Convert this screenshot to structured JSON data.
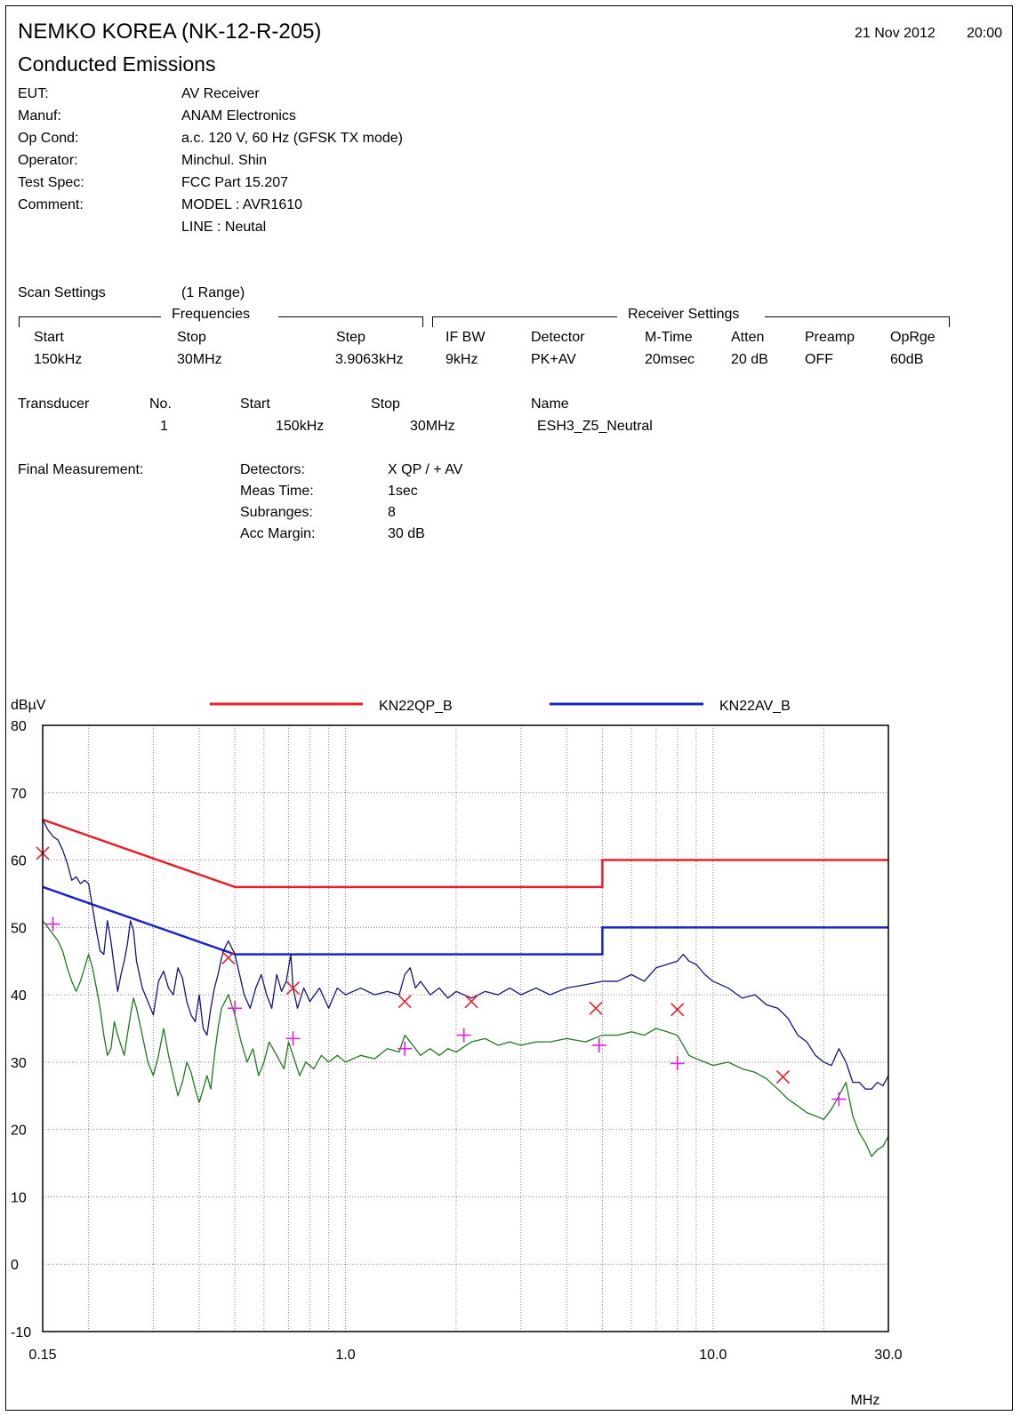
{
  "header": {
    "lab_title": "NEMKO KOREA (NK-12-R-205)",
    "test_title": "Conducted Emissions",
    "date": "21 Nov 2012",
    "time": "20:00"
  },
  "info": [
    {
      "label": "EUT:",
      "value": "AV Receiver"
    },
    {
      "label": "Manuf:",
      "value": "ANAM Electronics"
    },
    {
      "label": "Op Cond:",
      "value": "a.c. 120 V, 60 Hz (GFSK TX mode)"
    },
    {
      "label": "Operator:",
      "value": "Minchul. Shin"
    },
    {
      "label": "Test Spec:",
      "value": "FCC Part 15.207"
    },
    {
      "label": "Comment:",
      "value": "MODEL : AVR1610"
    },
    {
      "label": "",
      "value": "LINE : Neutal"
    }
  ],
  "scan": {
    "label": "Scan Settings",
    "range": "(1  Range)",
    "frequencies_title": "Frequencies",
    "receiver_title": "Receiver Settings",
    "headers": {
      "start": "Start",
      "stop": "Stop",
      "step": "Step",
      "ifbw": "IF BW",
      "detector": "Detector",
      "mtime": "M-Time",
      "atten": "Atten",
      "preamp": "Preamp",
      "oprge": "OpRge"
    },
    "values": {
      "start": "150kHz",
      "stop": "30MHz",
      "step": "3.9063kHz",
      "ifbw": "9kHz",
      "detector": "PK+AV",
      "mtime": "20msec",
      "atten": "20 dB",
      "preamp": "OFF",
      "oprge": "60dB"
    }
  },
  "transducer": {
    "label": "Transducer",
    "headers": {
      "no": "No.",
      "start": "Start",
      "stop": "Stop",
      "name": "Name"
    },
    "values": {
      "no": "1",
      "start": "150kHz",
      "stop": "30MHz",
      "name": "ESH3_Z5_Neutral"
    }
  },
  "final": {
    "label": "Final Measurement:",
    "rows": [
      {
        "label": "Detectors:",
        "value": "X QP / + AV"
      },
      {
        "label": "Meas Time:",
        "value": "1sec"
      },
      {
        "label": "Subranges:",
        "value": "8"
      },
      {
        "label": "Acc Margin:",
        "value": "30 dB"
      }
    ]
  },
  "chart_data": {
    "type": "line",
    "ylabel": "dBµV",
    "xlabel": "MHz",
    "x_scale": "log",
    "xlim": [
      0.15,
      30.0
    ],
    "ylim": [
      -10,
      80
    ],
    "y_ticks": [
      80,
      70,
      60,
      50,
      40,
      30,
      20,
      10,
      0,
      -10
    ],
    "x_tick_labels": [
      {
        "x": 0.15,
        "label": "0.15"
      },
      {
        "x": 1.0,
        "label": "1.0"
      },
      {
        "x": 10.0,
        "label": "10.0"
      },
      {
        "x": 30.0,
        "label": "30.0"
      }
    ],
    "grid": true,
    "legend_position": "top",
    "colors": {
      "qp_limit": "#e8202a",
      "av_limit": "#1a24c8",
      "peak_trace": "#15157a",
      "avg_trace": "#1e7a1e",
      "qp_marker": "#e8202a",
      "av_marker": "#e020e0"
    },
    "limit_lines": [
      {
        "name": "KN22QP_B",
        "color": "#e8202a",
        "points": [
          [
            0.15,
            66
          ],
          [
            0.5,
            56
          ],
          [
            5.0,
            56
          ],
          [
            5.0,
            60
          ],
          [
            30.0,
            60
          ]
        ]
      },
      {
        "name": "KN22AV_B",
        "color": "#1a24c8",
        "points": [
          [
            0.15,
            56
          ],
          [
            0.5,
            46
          ],
          [
            5.0,
            46
          ],
          [
            5.0,
            50
          ],
          [
            30.0,
            50
          ]
        ]
      }
    ],
    "traces": [
      {
        "color": "#15157a",
        "points": [
          [
            0.15,
            66
          ],
          [
            0.155,
            64.5
          ],
          [
            0.16,
            63.5
          ],
          [
            0.165,
            63
          ],
          [
            0.17,
            61.5
          ],
          [
            0.175,
            59.5
          ],
          [
            0.18,
            57
          ],
          [
            0.185,
            57.5
          ],
          [
            0.19,
            56.5
          ],
          [
            0.195,
            57
          ],
          [
            0.2,
            56.5
          ],
          [
            0.205,
            53
          ],
          [
            0.21,
            49.5
          ],
          [
            0.215,
            46.5
          ],
          [
            0.22,
            46
          ],
          [
            0.225,
            51
          ],
          [
            0.23,
            48
          ],
          [
            0.235,
            44
          ],
          [
            0.24,
            40.5
          ],
          [
            0.245,
            43
          ],
          [
            0.25,
            45
          ],
          [
            0.255,
            47.5
          ],
          [
            0.26,
            51
          ],
          [
            0.265,
            49.5
          ],
          [
            0.27,
            45
          ],
          [
            0.28,
            41
          ],
          [
            0.29,
            39
          ],
          [
            0.3,
            37
          ],
          [
            0.31,
            42
          ],
          [
            0.32,
            43.5
          ],
          [
            0.33,
            41
          ],
          [
            0.34,
            40
          ],
          [
            0.35,
            44
          ],
          [
            0.36,
            42.5
          ],
          [
            0.37,
            39
          ],
          [
            0.38,
            37
          ],
          [
            0.39,
            36
          ],
          [
            0.4,
            40
          ],
          [
            0.41,
            35
          ],
          [
            0.42,
            34
          ],
          [
            0.43,
            38
          ],
          [
            0.44,
            41
          ],
          [
            0.45,
            43
          ],
          [
            0.46,
            45.5
          ],
          [
            0.47,
            47
          ],
          [
            0.48,
            48
          ],
          [
            0.49,
            47
          ],
          [
            0.5,
            46
          ],
          [
            0.51,
            44
          ],
          [
            0.52,
            42
          ],
          [
            0.53,
            40
          ],
          [
            0.55,
            38
          ],
          [
            0.57,
            41
          ],
          [
            0.59,
            43
          ],
          [
            0.61,
            40
          ],
          [
            0.63,
            38
          ],
          [
            0.65,
            43
          ],
          [
            0.67,
            40.5
          ],
          [
            0.69,
            42
          ],
          [
            0.7,
            44
          ],
          [
            0.71,
            46
          ],
          [
            0.72,
            41
          ],
          [
            0.74,
            38
          ],
          [
            0.77,
            41
          ],
          [
            0.8,
            39
          ],
          [
            0.85,
            41
          ],
          [
            0.9,
            38
          ],
          [
            0.95,
            41
          ],
          [
            1.0,
            40
          ],
          [
            1.1,
            41
          ],
          [
            1.2,
            40
          ],
          [
            1.3,
            40.5
          ],
          [
            1.4,
            40
          ],
          [
            1.45,
            43
          ],
          [
            1.5,
            44
          ],
          [
            1.55,
            41
          ],
          [
            1.6,
            42
          ],
          [
            1.7,
            40
          ],
          [
            1.8,
            41
          ],
          [
            1.9,
            39.5
          ],
          [
            2.0,
            40.5
          ],
          [
            2.2,
            39.5
          ],
          [
            2.4,
            40.5
          ],
          [
            2.6,
            40
          ],
          [
            2.8,
            41
          ],
          [
            3.0,
            40
          ],
          [
            3.3,
            41
          ],
          [
            3.6,
            40
          ],
          [
            4.0,
            41
          ],
          [
            4.5,
            41.5
          ],
          [
            5.0,
            42
          ],
          [
            5.5,
            42
          ],
          [
            6.0,
            43
          ],
          [
            6.5,
            42
          ],
          [
            7.0,
            44
          ],
          [
            7.5,
            44.5
          ],
          [
            8.0,
            45
          ],
          [
            8.3,
            46
          ],
          [
            8.6,
            45
          ],
          [
            9.0,
            44.5
          ],
          [
            9.5,
            43
          ],
          [
            10.0,
            42
          ],
          [
            11.0,
            41
          ],
          [
            12.0,
            39.5
          ],
          [
            13.0,
            40
          ],
          [
            14.0,
            38.5
          ],
          [
            15.0,
            38
          ],
          [
            16.0,
            36.5
          ],
          [
            17.0,
            34
          ],
          [
            18.0,
            33
          ],
          [
            19.0,
            31
          ],
          [
            20.0,
            30
          ],
          [
            21.0,
            29.5
          ],
          [
            22.0,
            32
          ],
          [
            23.0,
            30
          ],
          [
            24.0,
            27
          ],
          [
            25.0,
            27
          ],
          [
            26.0,
            26
          ],
          [
            27.0,
            26
          ],
          [
            28.0,
            27
          ],
          [
            29.0,
            26.5
          ],
          [
            30.0,
            28
          ]
        ]
      },
      {
        "color": "#1e7a1e",
        "points": [
          [
            0.15,
            51
          ],
          [
            0.155,
            50
          ],
          [
            0.16,
            49
          ],
          [
            0.165,
            48
          ],
          [
            0.17,
            46.5
          ],
          [
            0.175,
            44
          ],
          [
            0.18,
            42
          ],
          [
            0.185,
            40.5
          ],
          [
            0.19,
            42
          ],
          [
            0.195,
            44
          ],
          [
            0.2,
            46
          ],
          [
            0.205,
            44
          ],
          [
            0.21,
            41
          ],
          [
            0.215,
            38
          ],
          [
            0.22,
            34
          ],
          [
            0.225,
            31
          ],
          [
            0.23,
            32
          ],
          [
            0.235,
            36
          ],
          [
            0.24,
            34
          ],
          [
            0.25,
            31
          ],
          [
            0.26,
            37
          ],
          [
            0.265,
            39.5
          ],
          [
            0.27,
            38
          ],
          [
            0.28,
            34
          ],
          [
            0.29,
            30
          ],
          [
            0.3,
            28
          ],
          [
            0.31,
            31
          ],
          [
            0.32,
            35
          ],
          [
            0.33,
            31
          ],
          [
            0.34,
            28
          ],
          [
            0.35,
            25
          ],
          [
            0.36,
            27
          ],
          [
            0.37,
            30
          ],
          [
            0.38,
            28.5
          ],
          [
            0.39,
            26
          ],
          [
            0.4,
            24
          ],
          [
            0.41,
            26
          ],
          [
            0.42,
            28
          ],
          [
            0.43,
            26
          ],
          [
            0.44,
            31
          ],
          [
            0.45,
            35
          ],
          [
            0.46,
            38
          ],
          [
            0.47,
            39
          ],
          [
            0.48,
            40
          ],
          [
            0.49,
            38.5
          ],
          [
            0.5,
            37
          ],
          [
            0.52,
            33
          ],
          [
            0.54,
            30
          ],
          [
            0.56,
            32
          ],
          [
            0.58,
            28
          ],
          [
            0.6,
            30
          ],
          [
            0.62,
            33
          ],
          [
            0.65,
            31
          ],
          [
            0.68,
            29
          ],
          [
            0.7,
            33
          ],
          [
            0.72,
            31
          ],
          [
            0.75,
            28
          ],
          [
            0.78,
            30
          ],
          [
            0.82,
            29
          ],
          [
            0.86,
            31
          ],
          [
            0.9,
            30
          ],
          [
            0.95,
            31
          ],
          [
            1.0,
            30
          ],
          [
            1.1,
            31
          ],
          [
            1.2,
            30.5
          ],
          [
            1.3,
            32
          ],
          [
            1.4,
            31.5
          ],
          [
            1.45,
            34
          ],
          [
            1.5,
            33
          ],
          [
            1.6,
            31
          ],
          [
            1.7,
            32
          ],
          [
            1.8,
            31
          ],
          [
            1.9,
            32
          ],
          [
            2.0,
            31.5
          ],
          [
            2.2,
            33
          ],
          [
            2.4,
            33.5
          ],
          [
            2.6,
            32.5
          ],
          [
            2.8,
            33
          ],
          [
            3.0,
            32.5
          ],
          [
            3.3,
            33
          ],
          [
            3.6,
            33
          ],
          [
            4.0,
            33.5
          ],
          [
            4.5,
            33
          ],
          [
            5.0,
            34
          ],
          [
            5.5,
            34
          ],
          [
            6.0,
            34.5
          ],
          [
            6.5,
            34
          ],
          [
            7.0,
            35
          ],
          [
            7.5,
            34.5
          ],
          [
            8.0,
            34
          ],
          [
            8.3,
            32.5
          ],
          [
            8.6,
            31
          ],
          [
            9.0,
            30.5
          ],
          [
            9.5,
            30
          ],
          [
            10.0,
            29.5
          ],
          [
            11.0,
            30
          ],
          [
            12.0,
            29
          ],
          [
            13.0,
            28.5
          ],
          [
            14.0,
            27.5
          ],
          [
            15.0,
            26
          ],
          [
            16.0,
            24.5
          ],
          [
            17.0,
            23.5
          ],
          [
            18.0,
            22.5
          ],
          [
            19.0,
            22
          ],
          [
            20.0,
            21.5
          ],
          [
            21.0,
            23
          ],
          [
            22.0,
            25
          ],
          [
            23.0,
            27
          ],
          [
            24.0,
            22
          ],
          [
            25.0,
            19.5
          ],
          [
            26.0,
            18
          ],
          [
            27.0,
            16
          ],
          [
            28.0,
            17
          ],
          [
            29.0,
            17.5
          ],
          [
            30.0,
            19
          ]
        ]
      }
    ],
    "qp_markers": [
      [
        0.15,
        61
      ],
      [
        0.48,
        45.5
      ],
      [
        0.72,
        41
      ],
      [
        1.45,
        39
      ],
      [
        2.2,
        39
      ],
      [
        4.8,
        38
      ],
      [
        8.0,
        37.8
      ],
      [
        15.5,
        27.8
      ]
    ],
    "av_markers": [
      [
        0.16,
        50.5
      ],
      [
        0.5,
        38
      ],
      [
        0.72,
        33.5
      ],
      [
        1.45,
        32
      ],
      [
        2.1,
        34
      ],
      [
        4.9,
        32.5
      ],
      [
        8.0,
        29.8
      ],
      [
        22.0,
        24.5
      ]
    ]
  }
}
